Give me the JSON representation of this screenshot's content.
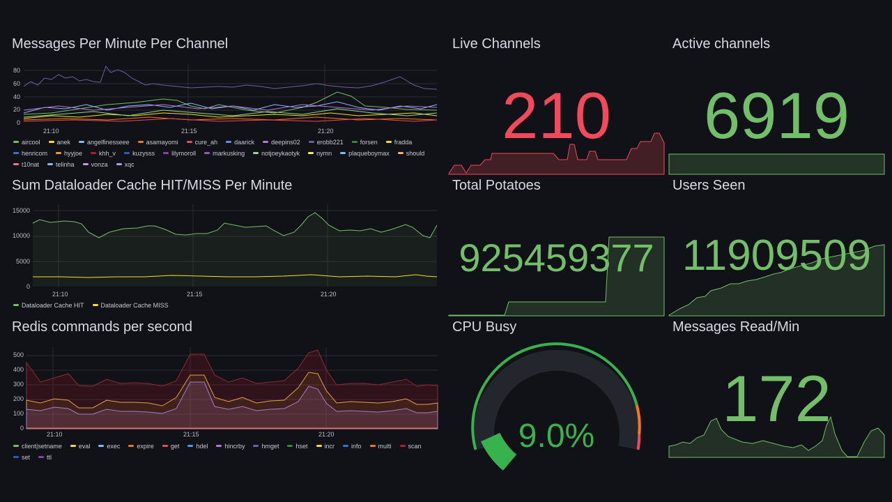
{
  "panels": {
    "messages_per_minute": {
      "title": "Messages Per Minute Per Channel",
      "y_ticks": [
        "80",
        "60",
        "40",
        "20",
        "0"
      ],
      "x_ticks": [
        "21:10",
        "21:15",
        "21:20"
      ],
      "legend": [
        {
          "label": "aircool",
          "color": "#73bf69"
        },
        {
          "label": "anek",
          "color": "#fade2a"
        },
        {
          "label": "angelfinesseee",
          "color": "#8ab8ff"
        },
        {
          "label": "asamayomi",
          "color": "#ff780a"
        },
        {
          "label": "cure_ah",
          "color": "#f2495c"
        },
        {
          "label": "daarick",
          "color": "#5794f2"
        },
        {
          "label": "deepins02",
          "color": "#b877d9"
        },
        {
          "label": "erobb221",
          "color": "#705da0"
        },
        {
          "label": "forsen",
          "color": "#37872d"
        },
        {
          "label": "fradda",
          "color": "#fade2a"
        },
        {
          "label": "henricom",
          "color": "#3274d9"
        },
        {
          "label": "hyyjoe",
          "color": "#ff9830"
        },
        {
          "label": "khh_v",
          "color": "#c4162a"
        },
        {
          "label": "kuzysss",
          "color": "#1f60c4"
        },
        {
          "label": "lilymoroll",
          "color": "#8f3bb8"
        },
        {
          "label": "markusking",
          "color": "#a352cc"
        },
        {
          "label": "notjoeykaotyk",
          "color": "#96d98d"
        },
        {
          "label": "nymn",
          "color": "#ffee52"
        },
        {
          "label": "plaqueboymax",
          "color": "#73bfef"
        },
        {
          "label": "should",
          "color": "#ffb357"
        },
        {
          "label": "t10nat",
          "color": "#ff7383"
        },
        {
          "label": "telinha",
          "color": "#8ab8ff"
        },
        {
          "label": "vonza",
          "color": "#ca95e5"
        },
        {
          "label": "xqc",
          "color": "#a9a0f3"
        }
      ]
    },
    "dataloader": {
      "title": "Sum Dataloader Cache HIT/MISS Per Minute",
      "y_ticks": [
        "15000",
        "10000",
        "5000",
        "0"
      ],
      "x_ticks": [
        "21:10",
        "21:15",
        "21:20"
      ],
      "legend": [
        {
          "label": "Dataloader Cache HIT",
          "color": "#73bf69"
        },
        {
          "label": "Dataloader Cache MISS",
          "color": "#fade2a"
        }
      ]
    },
    "redis": {
      "title": "Redis commands per second",
      "y_ticks": [
        "500",
        "400",
        "300",
        "200",
        "100",
        "0"
      ],
      "x_ticks": [
        "21:10",
        "21:15",
        "21:20"
      ],
      "legend": [
        {
          "label": "client|setname",
          "color": "#73bf69"
        },
        {
          "label": "eval",
          "color": "#fade2a"
        },
        {
          "label": "exec",
          "color": "#8ab8ff"
        },
        {
          "label": "expire",
          "color": "#ff780a"
        },
        {
          "label": "get",
          "color": "#f2495c"
        },
        {
          "label": "hdel",
          "color": "#5794f2"
        },
        {
          "label": "hincrby",
          "color": "#b877d9"
        },
        {
          "label": "hmget",
          "color": "#705da0"
        },
        {
          "label": "hset",
          "color": "#37872d"
        },
        {
          "label": "incr",
          "color": "#fade2a"
        },
        {
          "label": "info",
          "color": "#3274d9"
        },
        {
          "label": "multi",
          "color": "#ff780a"
        },
        {
          "label": "scan",
          "color": "#c4162a"
        },
        {
          "label": "set",
          "color": "#1f60c4"
        },
        {
          "label": "ttl",
          "color": "#8f3bb8"
        }
      ]
    },
    "live_channels": {
      "title": "Live Channels",
      "value": "210",
      "color": "#f2495c"
    },
    "active_channels": {
      "title": "Active channels",
      "value": "6919",
      "color": "#73bf69"
    },
    "total_potatoes": {
      "title": "Total Potatoes",
      "value": "925459377",
      "color": "#73bf69"
    },
    "users_seen": {
      "title": "Users Seen",
      "value": "11909509",
      "color": "#73bf69"
    },
    "cpu_busy": {
      "title": "CPU Busy",
      "value": "9.0%",
      "percent": 9.0,
      "color": "#37b24d"
    },
    "messages_read": {
      "title": "Messages Read/Min",
      "value": "172",
      "color": "#73bf69"
    }
  }
}
